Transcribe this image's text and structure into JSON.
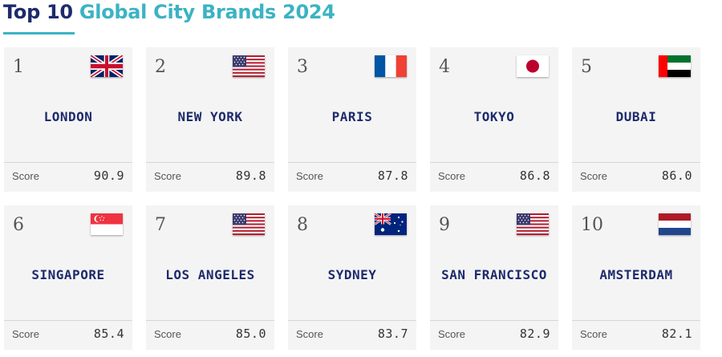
{
  "title": {
    "part1": "Top 10",
    "part2": "Global City Brands 2024"
  },
  "score_label": "Score",
  "cities": [
    {
      "rank": "1",
      "name": "LONDON",
      "score": "90.9",
      "flag": "uk-flag-icon"
    },
    {
      "rank": "2",
      "name": "NEW YORK",
      "score": "89.8",
      "flag": "us-flag-icon"
    },
    {
      "rank": "3",
      "name": "PARIS",
      "score": "87.8",
      "flag": "france-flag-icon"
    },
    {
      "rank": "4",
      "name": "TOKYO",
      "score": "86.8",
      "flag": "japan-flag-icon"
    },
    {
      "rank": "5",
      "name": "DUBAI",
      "score": "86.0",
      "flag": "uae-flag-icon"
    },
    {
      "rank": "6",
      "name": "SINGAPORE",
      "score": "85.4",
      "flag": "singapore-flag-icon"
    },
    {
      "rank": "7",
      "name": "LOS ANGELES",
      "score": "85.0",
      "flag": "us-flag-icon"
    },
    {
      "rank": "8",
      "name": "SYDNEY",
      "score": "83.7",
      "flag": "australia-flag-icon"
    },
    {
      "rank": "9",
      "name": "SAN FRANCISCO",
      "score": "82.9",
      "flag": "us-flag-icon"
    },
    {
      "rank": "10",
      "name": "AMSTERDAM",
      "score": "82.1",
      "flag": "netherlands-flag-icon"
    }
  ],
  "colors": {
    "title_dark": "#1d2b6c",
    "title_accent": "#3bb3c3",
    "card_bg": "#f4f4f4"
  }
}
